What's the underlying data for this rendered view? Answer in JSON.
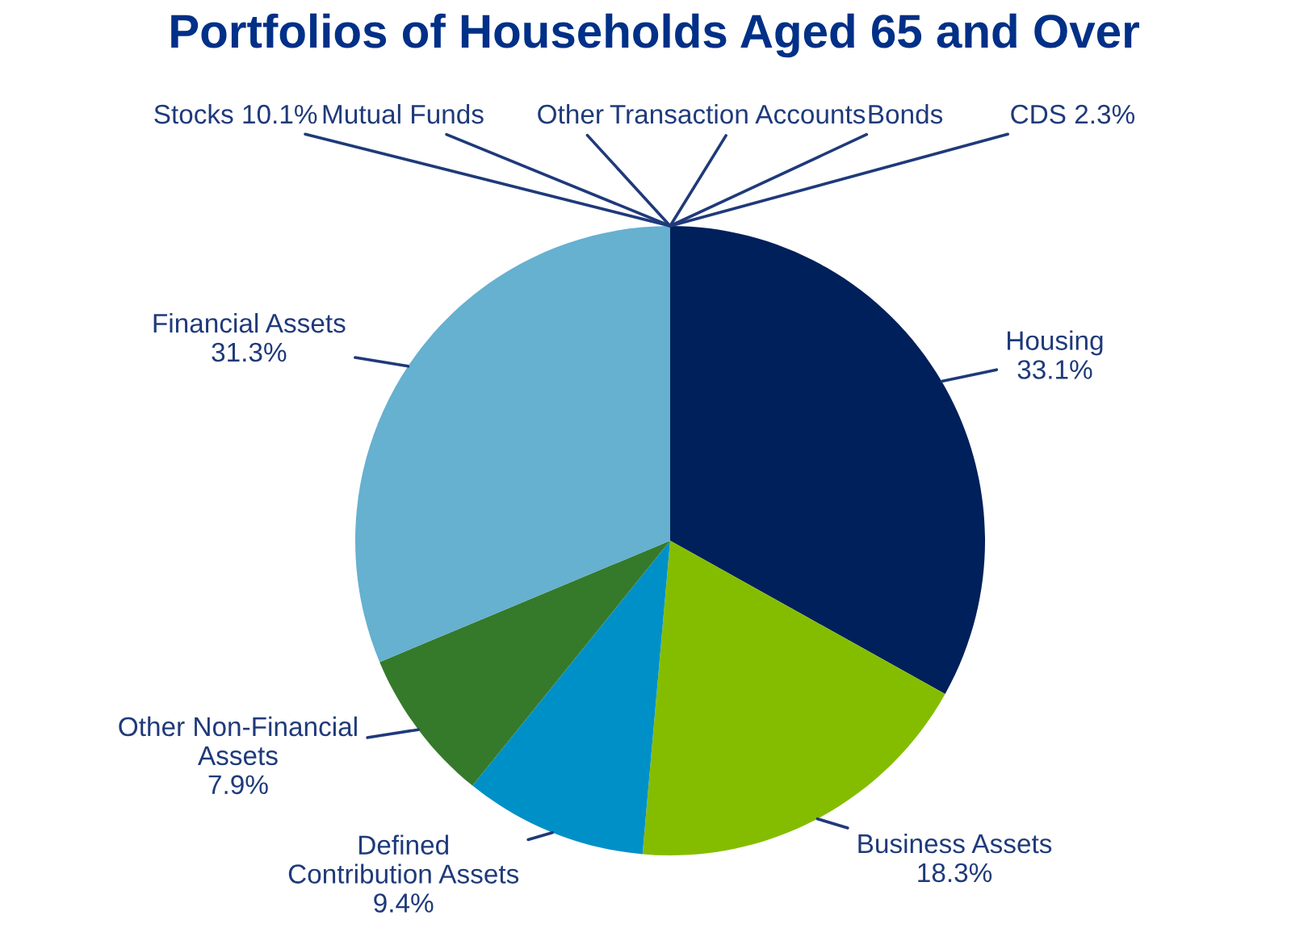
{
  "chart_data": {
    "type": "pie",
    "title": "Portfolios of Households Aged 65 and Over",
    "categories": [
      "Housing",
      "Business Assets",
      "Defined Contribution Assets",
      "Other Non-Financial Assets",
      "Financial Assets"
    ],
    "values": [
      33.1,
      18.3,
      9.4,
      7.9,
      31.3
    ],
    "value_labels": [
      "33.1%",
      "18.3%",
      "9.4%",
      "7.9%",
      "31.3%"
    ],
    "colors": [
      "#00205b",
      "#84bd00",
      "#0090c8",
      "#357a2a",
      "#66b0d0"
    ],
    "annotations": [
      "Stocks 10.1%",
      "Mutual Funds",
      "Other",
      "Transaction Accounts",
      "Bonds",
      "CDS 2.3%"
    ]
  }
}
